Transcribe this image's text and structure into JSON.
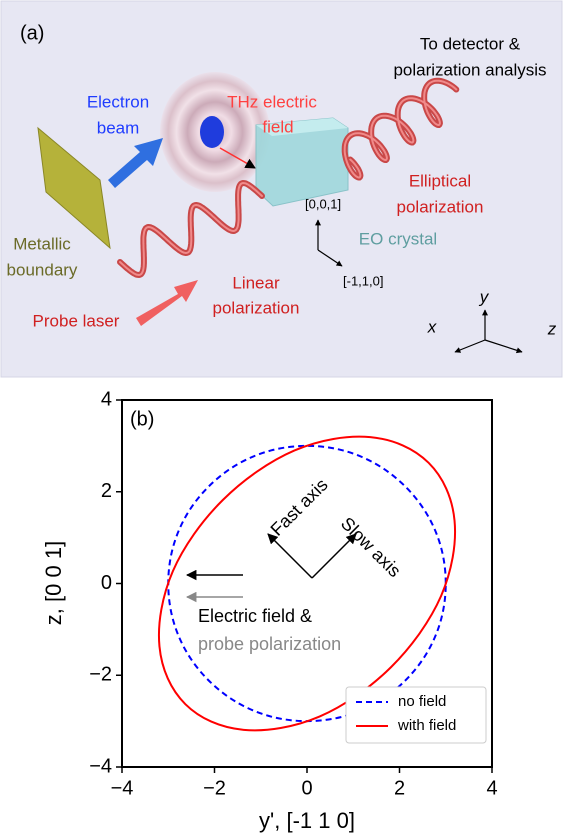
{
  "panel_a": {
    "label": "(a)",
    "detector": [
      "To detector &",
      "polarization analysis"
    ],
    "electron_beam": [
      "Electron",
      "beam"
    ],
    "thz_field": [
      "THz electric",
      "field"
    ],
    "elliptical": [
      "Elliptical",
      "polarization"
    ],
    "metallic": [
      "Metallic",
      "boundary"
    ],
    "crystal_axis_1": "[0,0,1]",
    "eo_crystal": "EO crystal",
    "crystal_axis_2": "[-1,1,0]",
    "linear": [
      "Linear",
      "polarization"
    ],
    "probe_laser": "Probe laser",
    "axes": {
      "x": "x",
      "y": "y",
      "z": "z"
    }
  },
  "chart_data": {
    "type": "line",
    "panel_label": "(b)",
    "xlabel": "y', [-1 1 0]",
    "ylabel": "z, [0 0 1]",
    "xlim": [
      -4,
      4
    ],
    "ylim": [
      -4,
      4
    ],
    "xticks": [
      {
        "value": -4,
        "label": "−4"
      },
      {
        "value": -2,
        "label": "−2"
      },
      0,
      2,
      4
    ],
    "yticks": [
      {
        "value": -4,
        "label": "−4"
      },
      {
        "value": -2,
        "label": "−2"
      },
      0,
      2,
      4
    ],
    "legend": "lower right",
    "closed": true,
    "series": [
      {
        "name": "no field",
        "color": "#0000ff",
        "style": "dashed",
        "x": [
          3,
          2.9,
          2.6,
          2.12,
          1.5,
          0.78,
          0,
          -0.78,
          -1.5,
          -2.12,
          -2.6,
          -2.9,
          -3,
          -2.9,
          -2.6,
          -2.12,
          -1.5,
          -0.78,
          0,
          0.78,
          1.5,
          2.12,
          2.6,
          2.9
        ],
        "values": [
          0,
          0.78,
          1.5,
          2.12,
          2.6,
          2.9,
          3,
          2.9,
          2.6,
          2.12,
          1.5,
          0.78,
          0,
          -0.78,
          -1.5,
          -2.12,
          -2.6,
          -2.9,
          -3,
          -2.9,
          -2.6,
          -2.12,
          -1.5,
          -0.78
        ]
      },
      {
        "name": "with field",
        "color": "#ff0000",
        "style": "solid",
        "x": [
          2.63,
          3.01,
          3.19,
          3.15,
          2.9,
          2.44,
          1.82,
          1.08,
          0.27,
          -0.57,
          -1.37,
          -2.07,
          -2.63,
          -3.01,
          -3.19,
          -3.15,
          -2.9,
          -2.44,
          -1.82,
          -1.08,
          -0.27,
          0.57,
          1.37,
          2.07
        ],
        "values": [
          2.63,
          2.07,
          1.37,
          0.57,
          -0.27,
          -1.08,
          -1.82,
          -2.44,
          -2.9,
          -3.15,
          -3.19,
          -3.01,
          -2.63,
          -2.07,
          -1.37,
          -0.57,
          0.27,
          1.08,
          1.82,
          2.44,
          2.9,
          3.15,
          3.19,
          3.01
        ]
      }
    ],
    "annotations": [
      "Fast axis",
      "Slow axis",
      "Electric field &",
      "probe polarization"
    ]
  }
}
